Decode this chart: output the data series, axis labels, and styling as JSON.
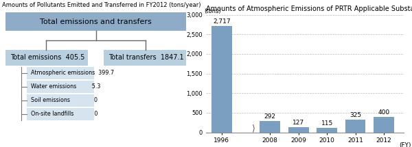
{
  "left_title": "Amounts of Pollutants Emitted and Transferred in FY2012 (tons/year)",
  "right_title": "Amounts of Atmospheric Emissions of PRTR Applicable Substances",
  "top_box_text": "Total emissions and transfers",
  "top_box_color": "#8eacc8",
  "mid_box_color": "#b8cfe0",
  "sub_box_color": "#d6e4ef",
  "connector_color": "#ffffff",
  "left_box_label": "Total emissions  405.5",
  "right_box_label": "Total transfers  1847.1",
  "sub_items": [
    "Atmospheric emissions  399.7",
    "Water emissions         5.3",
    "Soil emissions              0",
    "On-site landfills            0"
  ],
  "bar_years": [
    "1996",
    "2008",
    "2009",
    "2010",
    "2011",
    "2012"
  ],
  "bar_values": [
    2717,
    292,
    127,
    115,
    325,
    400
  ],
  "bar_color": "#7a9fc0",
  "bar_labels": [
    "2,717",
    "292",
    "127",
    "115",
    "325",
    "400"
  ],
  "y_ticks": [
    0,
    500,
    1000,
    1500,
    2000,
    2500,
    3000
  ],
  "y_label": "(tons)",
  "x_label": "(FY)"
}
